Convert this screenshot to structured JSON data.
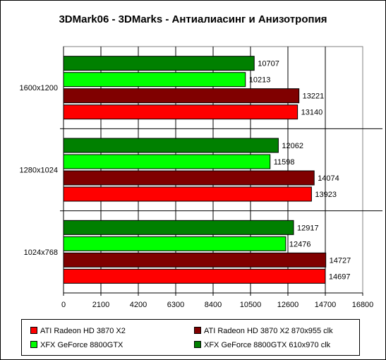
{
  "chart_data": {
    "type": "bar",
    "orientation": "horizontal",
    "title": "3DMark06 - 3DMarks - Антиалиасинг и Анизотропия",
    "xlabel": "",
    "ylabel": "",
    "categories": [
      "1600x1200",
      "1280x1024",
      "1024x768"
    ],
    "xlim": [
      0,
      16800
    ],
    "xticks": [
      0,
      2100,
      4200,
      6300,
      8400,
      10500,
      12600,
      14700,
      16800
    ],
    "grid": true,
    "legend_position": "bottom",
    "series": [
      {
        "name": "ATI Radeon HD 3870 X2",
        "color": "#ff0000",
        "values": [
          13140,
          13923,
          14697
        ]
      },
      {
        "name": "ATI Radeon HD 3870 X2 870x955 clk",
        "color": "#800000",
        "values": [
          13221,
          14074,
          14727
        ]
      },
      {
        "name": "XFX GeForce 8800GTX",
        "color": "#00ff00",
        "values": [
          10213,
          11598,
          12476
        ]
      },
      {
        "name": "XFX GeForce 8800GTX 610x970 clk",
        "color": "#008000",
        "values": [
          10707,
          12062,
          12917
        ]
      }
    ]
  }
}
